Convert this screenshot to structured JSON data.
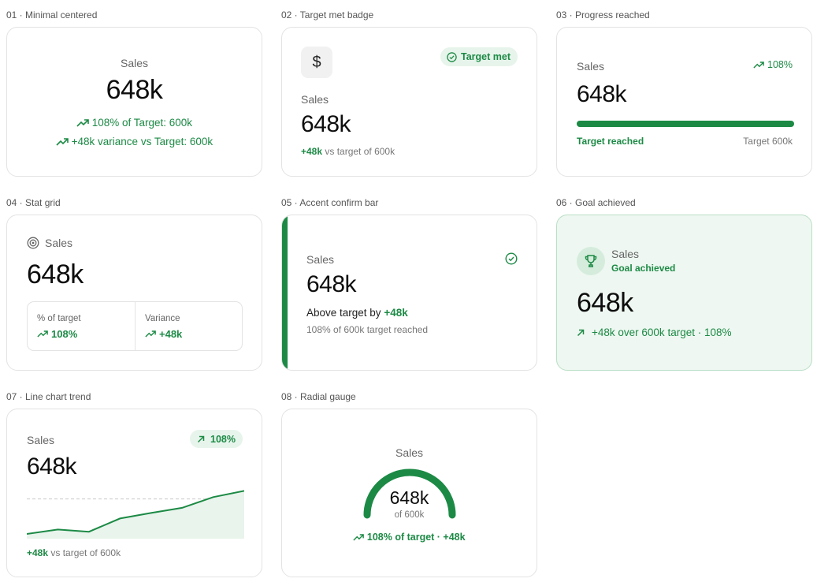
{
  "accent": "#1c8a45",
  "labels": {
    "c1": "01 · Minimal centered",
    "c2": "02 · Target met badge",
    "c3": "03 · Progress reached",
    "c4": "04 · Stat grid",
    "c5": "05 · Accent confirm bar",
    "c6": "06 · Goal achieved",
    "c7": "07 · Line chart trend",
    "c8": "08 · Radial gauge"
  },
  "c1": {
    "title": "Sales",
    "value": "648k",
    "line1": "108% of Target: 600k",
    "line2": "+48k variance vs Target: 600k"
  },
  "c2": {
    "icon": "dollar-icon",
    "badge": "Target met",
    "title": "Sales",
    "value": "648k",
    "delta": "+48k",
    "rest": "vs target of 600k"
  },
  "c3": {
    "title": "Sales",
    "pct": "108%",
    "value": "648k",
    "progress": 1.0,
    "left": "Target reached",
    "right": "Target 600k"
  },
  "c4": {
    "title": "Sales",
    "value": "648k",
    "cell1_label": "% of target",
    "cell1_value": "108%",
    "cell2_label": "Variance",
    "cell2_value": "+48k"
  },
  "c5": {
    "title": "Sales",
    "value": "648k",
    "above_text": "Above target by",
    "above_value": "+48k",
    "sub": "108% of 600k target reached"
  },
  "c6": {
    "title": "Sales",
    "subtitle": "Goal achieved",
    "value": "648k",
    "note": "+48k over 600k target · 108%"
  },
  "c7": {
    "title": "Sales",
    "badge": "108%",
    "value": "648k",
    "delta": "+48k",
    "rest": "vs target of 600k",
    "chart_data": {
      "type": "area",
      "values": [
        0.0,
        0.12,
        0.06,
        0.42,
        0.57,
        0.71,
        1.0,
        1.17
      ],
      "target": 0.95,
      "ylim": [
        0,
        1.2
      ]
    }
  },
  "c8": {
    "title": "Sales",
    "value": "648k",
    "sub": "of 600k",
    "note": "108% of target · +48k",
    "fill": 1.0
  }
}
